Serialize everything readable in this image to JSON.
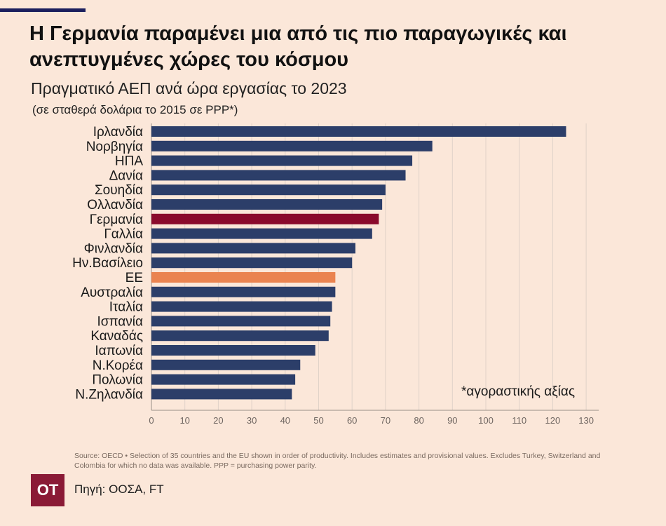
{
  "title": "Η Γερμανία παραμένει μια από τις πιο παραγωγικές και ανεπτυγμένες χώρες του κόσμου",
  "subtitle": "Πραγματικό ΑΕΠ ανά ώρα εργασίας το 2023",
  "subtitle2": "(σε σταθερά δολάρια το 2015 σε PPP*)",
  "footnote": "*αγοραστικής αξίας",
  "source_note": "Source: OECD • Selection of 35 countries and the EU shown in order of productivity. Includes estimates and provisional values. Excludes Turkey, Switzerland and Colombia for which no data was available. PPP = purchasing power parity.",
  "logo_text": "OT",
  "source_credit": "Πηγή: ΟΟΣΑ, FT",
  "colors": {
    "default": "#2c3e69",
    "highlight_germany": "#8a0a2c",
    "highlight_eu": "#ea8350"
  },
  "chart_data": {
    "type": "bar",
    "orientation": "horizontal",
    "title": "Πραγματικό ΑΕΠ ανά ώρα εργασίας το 2023",
    "subtitle": "(σε σταθερά δολάρια το 2015 σε PPP*)",
    "categories": [
      "Ιρλανδία",
      "Νορβηγία",
      "ΗΠΑ",
      "Δανία",
      "Σουηδία",
      "Ολλανδία",
      "Γερμανία",
      "Γαλλία",
      "Φινλανδία",
      "Ην.Βασίλειο",
      "ΕΕ",
      "Αυστραλία",
      "Ιταλία",
      "Ισπανία",
      "Καναδάς",
      "Ιαπωνία",
      "Ν.Κορέα",
      "Πολωνία",
      "Ν.Ζηλανδία"
    ],
    "values": [
      124,
      84,
      78,
      76,
      70,
      69,
      68,
      66,
      61,
      60,
      55,
      55,
      54,
      53.5,
      53,
      49,
      44.5,
      43,
      42
    ],
    "highlight": {
      "Γερμανία": "highlight_germany",
      "ΕΕ": "highlight_eu"
    },
    "xlim": [
      0,
      130
    ],
    "xticks": [
      "0",
      "10",
      "20",
      "30",
      "40",
      "50",
      "60",
      "70",
      "80",
      "90",
      "100",
      "110",
      "120",
      "130"
    ],
    "grid": true
  }
}
